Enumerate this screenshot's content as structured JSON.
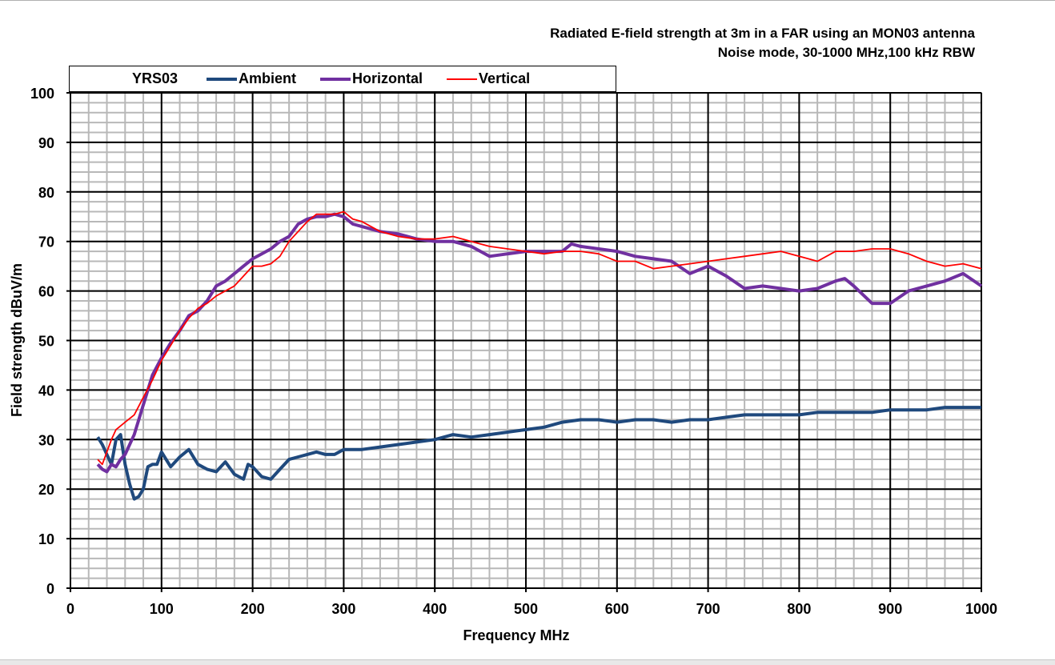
{
  "chart_data": {
    "type": "line",
    "title": [
      "Radiated E-field strength at 3m in a FAR using an MON03 antenna",
      "Noise mode, 30-1000 MHz,100 kHz RBW"
    ],
    "legend_title": "YRS03",
    "xlabel": "Frequency MHz",
    "ylabel": "Field strength dBuV/m",
    "xlim": [
      0,
      1000
    ],
    "ylim": [
      0,
      100
    ],
    "xticks": [
      0,
      100,
      200,
      300,
      400,
      500,
      600,
      700,
      800,
      900,
      1000
    ],
    "yticks": [
      0,
      10,
      20,
      30,
      40,
      50,
      60,
      70,
      80,
      90,
      100
    ],
    "grid": true,
    "legend_position": "top-left",
    "series": [
      {
        "name": "Ambient",
        "color": "#1f497d",
        "x": [
          30,
          35,
          40,
          45,
          50,
          55,
          60,
          65,
          70,
          75,
          80,
          85,
          90,
          95,
          100,
          105,
          110,
          120,
          130,
          140,
          150,
          160,
          170,
          180,
          190,
          195,
          200,
          210,
          220,
          230,
          240,
          250,
          260,
          270,
          280,
          290,
          300,
          320,
          340,
          360,
          380,
          400,
          420,
          440,
          460,
          480,
          500,
          520,
          540,
          560,
          580,
          600,
          620,
          640,
          660,
          680,
          700,
          720,
          740,
          760,
          780,
          800,
          820,
          840,
          860,
          880,
          900,
          920,
          940,
          960,
          980,
          1000
        ],
        "y": [
          30.5,
          29,
          27,
          25,
          30,
          31,
          25,
          21,
          18,
          18.5,
          20,
          24.5,
          25,
          25,
          27.5,
          26,
          24.5,
          26.5,
          28,
          25,
          24,
          23.5,
          25.5,
          23,
          22,
          25,
          24.5,
          22.5,
          22,
          24,
          26,
          26.5,
          27,
          27.5,
          27,
          27,
          28,
          28,
          28.5,
          29,
          29.5,
          30,
          31,
          30.5,
          31,
          31.5,
          32,
          32.5,
          33.5,
          34,
          34,
          33.5,
          34,
          34,
          33.5,
          34,
          34,
          34.5,
          35,
          35,
          35,
          35,
          35.5,
          35.5,
          35.5,
          35.5,
          36,
          36,
          36,
          36.5,
          36.5,
          36.5
        ]
      },
      {
        "name": "Horizontal",
        "color": "#7030a0",
        "x": [
          30,
          35,
          40,
          45,
          50,
          55,
          60,
          70,
          80,
          90,
          100,
          110,
          120,
          130,
          140,
          150,
          160,
          170,
          180,
          190,
          200,
          210,
          220,
          230,
          240,
          250,
          260,
          270,
          280,
          290,
          300,
          310,
          320,
          340,
          360,
          380,
          400,
          420,
          440,
          460,
          480,
          500,
          520,
          540,
          550,
          560,
          580,
          600,
          620,
          640,
          660,
          680,
          700,
          720,
          740,
          760,
          780,
          800,
          820,
          840,
          850,
          860,
          880,
          900,
          920,
          940,
          960,
          980,
          1000
        ],
        "y": [
          25,
          24,
          23.5,
          25,
          24.5,
          26,
          27,
          31,
          37,
          43,
          46.5,
          49.5,
          52,
          55,
          56,
          58,
          61,
          62,
          63.5,
          65,
          66.5,
          67.5,
          68.5,
          70,
          71,
          73.5,
          74.5,
          75,
          75,
          75.5,
          75,
          73.5,
          73,
          72,
          71.5,
          70.5,
          70,
          70,
          69,
          67,
          67.5,
          68,
          68,
          68,
          69.5,
          69,
          68.5,
          68,
          67,
          66.5,
          66,
          63.5,
          65,
          63,
          60.5,
          61,
          60.5,
          60,
          60.5,
          62,
          62.5,
          61,
          57.5,
          57.5,
          60,
          61,
          62,
          63.5,
          61
        ]
      },
      {
        "name": "Vertical",
        "color": "#ff0000",
        "x": [
          30,
          35,
          40,
          45,
          50,
          60,
          70,
          80,
          90,
          100,
          110,
          120,
          130,
          140,
          150,
          160,
          170,
          180,
          190,
          200,
          210,
          220,
          230,
          240,
          250,
          260,
          270,
          280,
          290,
          300,
          310,
          320,
          340,
          360,
          380,
          400,
          420,
          440,
          460,
          480,
          500,
          520,
          540,
          560,
          580,
          600,
          620,
          640,
          660,
          680,
          700,
          720,
          740,
          760,
          780,
          800,
          820,
          840,
          860,
          880,
          900,
          920,
          940,
          960,
          980,
          1000
        ],
        "y": [
          26,
          25,
          27.5,
          30,
          32,
          33.5,
          35,
          38.5,
          42,
          46,
          49,
          52,
          54.5,
          56.5,
          57.5,
          59,
          60,
          61,
          63,
          65,
          65,
          65.5,
          67,
          70,
          72,
          74,
          75.5,
          75.5,
          75.5,
          76,
          74.5,
          74,
          72,
          71,
          70.5,
          70.5,
          71,
          70,
          69,
          68.5,
          68,
          67.5,
          68,
          68,
          67.5,
          66,
          66,
          64.5,
          65,
          65.5,
          66,
          66.5,
          67,
          67.5,
          68,
          67,
          66,
          68,
          68,
          68.5,
          68.5,
          67.5,
          66,
          65,
          65.5,
          64.5
        ]
      }
    ]
  }
}
